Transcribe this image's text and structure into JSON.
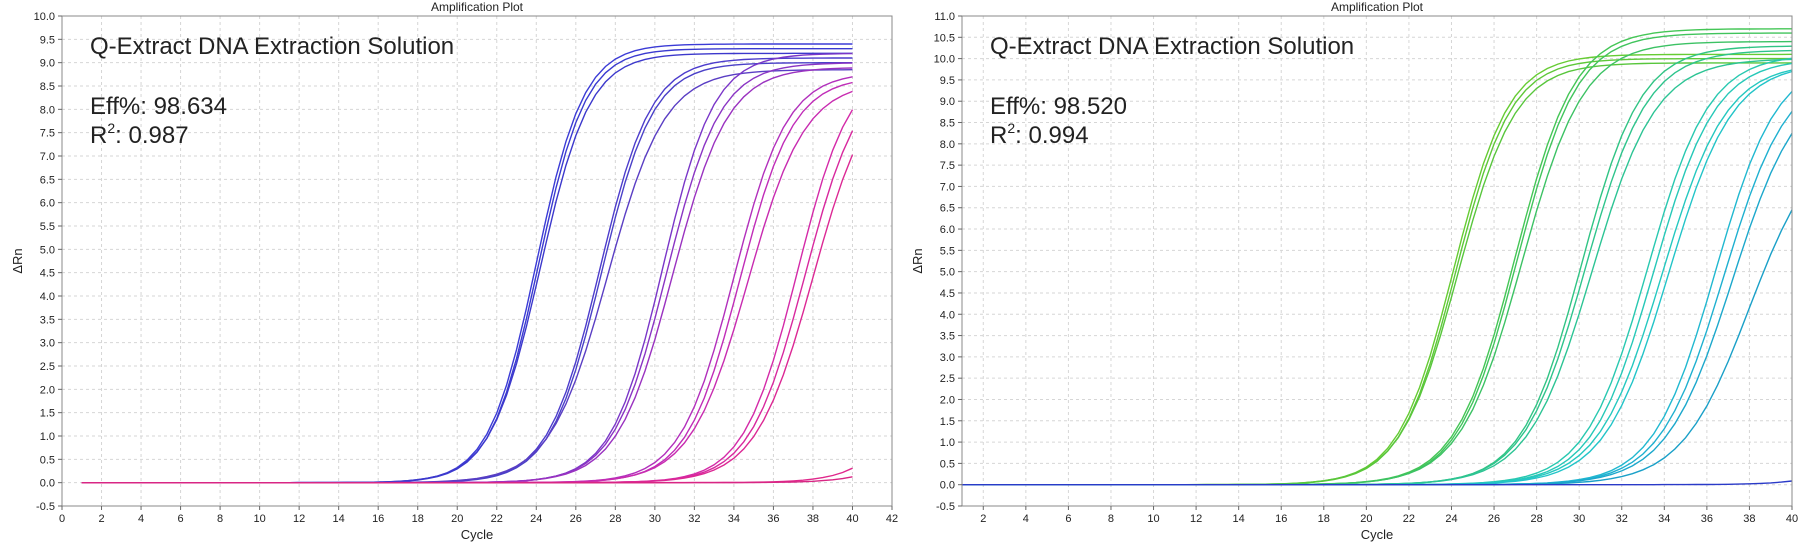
{
  "charts": [
    {
      "title": "Amplification Plot",
      "ylabel": "ΔRn",
      "xlabel": "Cycle",
      "annotation": {
        "line1": "Q-Extract DNA Extraction Solution",
        "eff": "Eff%: 98.634",
        "r2_prefix": "R",
        "r2_sup": "2",
        "r2_value": ": 0.987"
      },
      "xticks": [
        "0",
        "2",
        "4",
        "6",
        "8",
        "10",
        "12",
        "14",
        "16",
        "18",
        "20",
        "22",
        "24",
        "26",
        "28",
        "30",
        "32",
        "34",
        "36",
        "38",
        "40",
        "42"
      ],
      "yticks": [
        "-0.5",
        "0.0",
        "0.5",
        "1.0",
        "1.5",
        "2.0",
        "2.5",
        "3.0",
        "3.5",
        "4.0",
        "4.5",
        "5.0",
        "5.5",
        "6.0",
        "6.5",
        "7.0",
        "7.5",
        "8.0",
        "8.5",
        "9.0",
        "9.5",
        "10.0"
      ]
    },
    {
      "title": "Amplification Plot",
      "ylabel": "ΔRn",
      "xlabel": "Cycle",
      "annotation": {
        "line1": "Q-Extract DNA Extraction Solution",
        "eff": "Eff%: 98.520",
        "r2_prefix": "R",
        "r2_sup": "2",
        "r2_value": ": 0.994"
      },
      "xticks": [
        "2",
        "4",
        "6",
        "8",
        "10",
        "12",
        "14",
        "16",
        "18",
        "20",
        "22",
        "24",
        "26",
        "28",
        "30",
        "32",
        "34",
        "36",
        "38",
        "40"
      ],
      "yticks": [
        "-0.5",
        "0.0",
        "0.5",
        "1.0",
        "1.5",
        "2.0",
        "2.5",
        "3.0",
        "3.5",
        "4.0",
        "4.5",
        "5.0",
        "5.5",
        "6.0",
        "6.5",
        "7.0",
        "7.5",
        "8.0",
        "8.5",
        "9.0",
        "9.5",
        "10.0",
        "10.5",
        "11.0"
      ]
    }
  ],
  "chart_data": [
    {
      "type": "line",
      "title": "Amplification Plot",
      "xlabel": "Cycle",
      "ylabel": "ΔRn",
      "xlim": [
        0,
        42
      ],
      "ylim": [
        -0.5,
        10.0
      ],
      "grid": true,
      "x": [
        1,
        40
      ],
      "curve_model": "sigmoid ΔRn = plateau / (1 + exp(-(cycle - midpoint)/slope)), cycles 1–40",
      "series": [
        {
          "midpoint": 24.0,
          "plateau": 9.4,
          "slope": 1.2,
          "color": "#3b3bd6"
        },
        {
          "midpoint": 24.1,
          "plateau": 9.3,
          "slope": 1.2,
          "color": "#3a3ad0"
        },
        {
          "midpoint": 24.2,
          "plateau": 9.2,
          "slope": 1.25,
          "color": "#3c38cc"
        },
        {
          "midpoint": 27.2,
          "plateau": 9.1,
          "slope": 1.3,
          "color": "#4c3ccc"
        },
        {
          "midpoint": 27.3,
          "plateau": 9.0,
          "slope": 1.3,
          "color": "#4a40c8"
        },
        {
          "midpoint": 27.6,
          "plateau": 8.85,
          "slope": 1.45,
          "color": "#5a3ec4"
        },
        {
          "midpoint": 30.4,
          "plateau": 9.2,
          "slope": 1.3,
          "color": "#7a36c8"
        },
        {
          "midpoint": 30.6,
          "plateau": 9.0,
          "slope": 1.35,
          "color": "#8a34c4"
        },
        {
          "midpoint": 30.9,
          "plateau": 8.9,
          "slope": 1.4,
          "color": "#9a32c0"
        },
        {
          "midpoint": 34.0,
          "plateau": 8.8,
          "slope": 1.35,
          "color": "#b22fbc"
        },
        {
          "midpoint": 34.3,
          "plateau": 8.7,
          "slope": 1.35,
          "color": "#c02cb8"
        },
        {
          "midpoint": 34.7,
          "plateau": 8.6,
          "slope": 1.45,
          "color": "#c82bb0"
        },
        {
          "midpoint": 37.2,
          "plateau": 9.0,
          "slope": 1.35,
          "color": "#d42aa8"
        },
        {
          "midpoint": 37.6,
          "plateau": 8.9,
          "slope": 1.4,
          "color": "#d8289e"
        },
        {
          "midpoint": 38.0,
          "plateau": 8.8,
          "slope": 1.45,
          "color": "#dc2894"
        },
        {
          "midpoint": 44.5,
          "plateau": 8.0,
          "slope": 1.4,
          "color": "#e0288c"
        },
        {
          "midpoint": 45.8,
          "plateau": 8.0,
          "slope": 1.4,
          "color": "#d82684"
        }
      ]
    },
    {
      "type": "line",
      "title": "Amplification Plot",
      "xlabel": "Cycle",
      "ylabel": "ΔRn",
      "xlim": [
        1,
        40
      ],
      "ylim": [
        -0.5,
        11.0
      ],
      "grid": true,
      "x": [
        1,
        40
      ],
      "curve_model": "sigmoid ΔRn = plateau / (1 + exp(-(cycle - midpoint)/slope)), cycles 1–40",
      "series": [
        {
          "midpoint": 24.1,
          "plateau": 10.1,
          "slope": 1.3,
          "color": "#66cc33"
        },
        {
          "midpoint": 24.2,
          "plateau": 10.0,
          "slope": 1.3,
          "color": "#5ec838"
        },
        {
          "midpoint": 24.3,
          "plateau": 9.9,
          "slope": 1.35,
          "color": "#58c63c"
        },
        {
          "midpoint": 27.0,
          "plateau": 10.7,
          "slope": 1.4,
          "color": "#44c656"
        },
        {
          "midpoint": 27.1,
          "plateau": 10.6,
          "slope": 1.4,
          "color": "#40c45c"
        },
        {
          "midpoint": 27.3,
          "plateau": 10.4,
          "slope": 1.45,
          "color": "#3cc264"
        },
        {
          "midpoint": 30.1,
          "plateau": 10.3,
          "slope": 1.4,
          "color": "#30c484"
        },
        {
          "midpoint": 30.3,
          "plateau": 10.2,
          "slope": 1.45,
          "color": "#2ec48c"
        },
        {
          "midpoint": 30.6,
          "plateau": 10.0,
          "slope": 1.5,
          "color": "#2cc494"
        },
        {
          "midpoint": 33.2,
          "plateau": 10.1,
          "slope": 1.45,
          "color": "#28c8b0"
        },
        {
          "midpoint": 33.5,
          "plateau": 10.0,
          "slope": 1.45,
          "color": "#26c8b8"
        },
        {
          "midpoint": 33.9,
          "plateau": 9.9,
          "slope": 1.5,
          "color": "#24c8c0"
        },
        {
          "midpoint": 34.2,
          "plateau": 9.9,
          "slope": 1.5,
          "color": "#22c4c8"
        },
        {
          "midpoint": 36.4,
          "plateau": 10.0,
          "slope": 1.45,
          "color": "#20b8d0"
        },
        {
          "midpoint": 36.8,
          "plateau": 9.8,
          "slope": 1.5,
          "color": "#1eb0d0"
        },
        {
          "midpoint": 37.2,
          "plateau": 9.6,
          "slope": 1.55,
          "color": "#1ca8cc"
        },
        {
          "midpoint": 38.0,
          "plateau": 8.3,
          "slope": 1.6,
          "color": "#1aa0c8"
        },
        {
          "midpoint": 46.5,
          "plateau": 9.0,
          "slope": 1.4,
          "color": "#2a3ac8"
        }
      ]
    }
  ]
}
